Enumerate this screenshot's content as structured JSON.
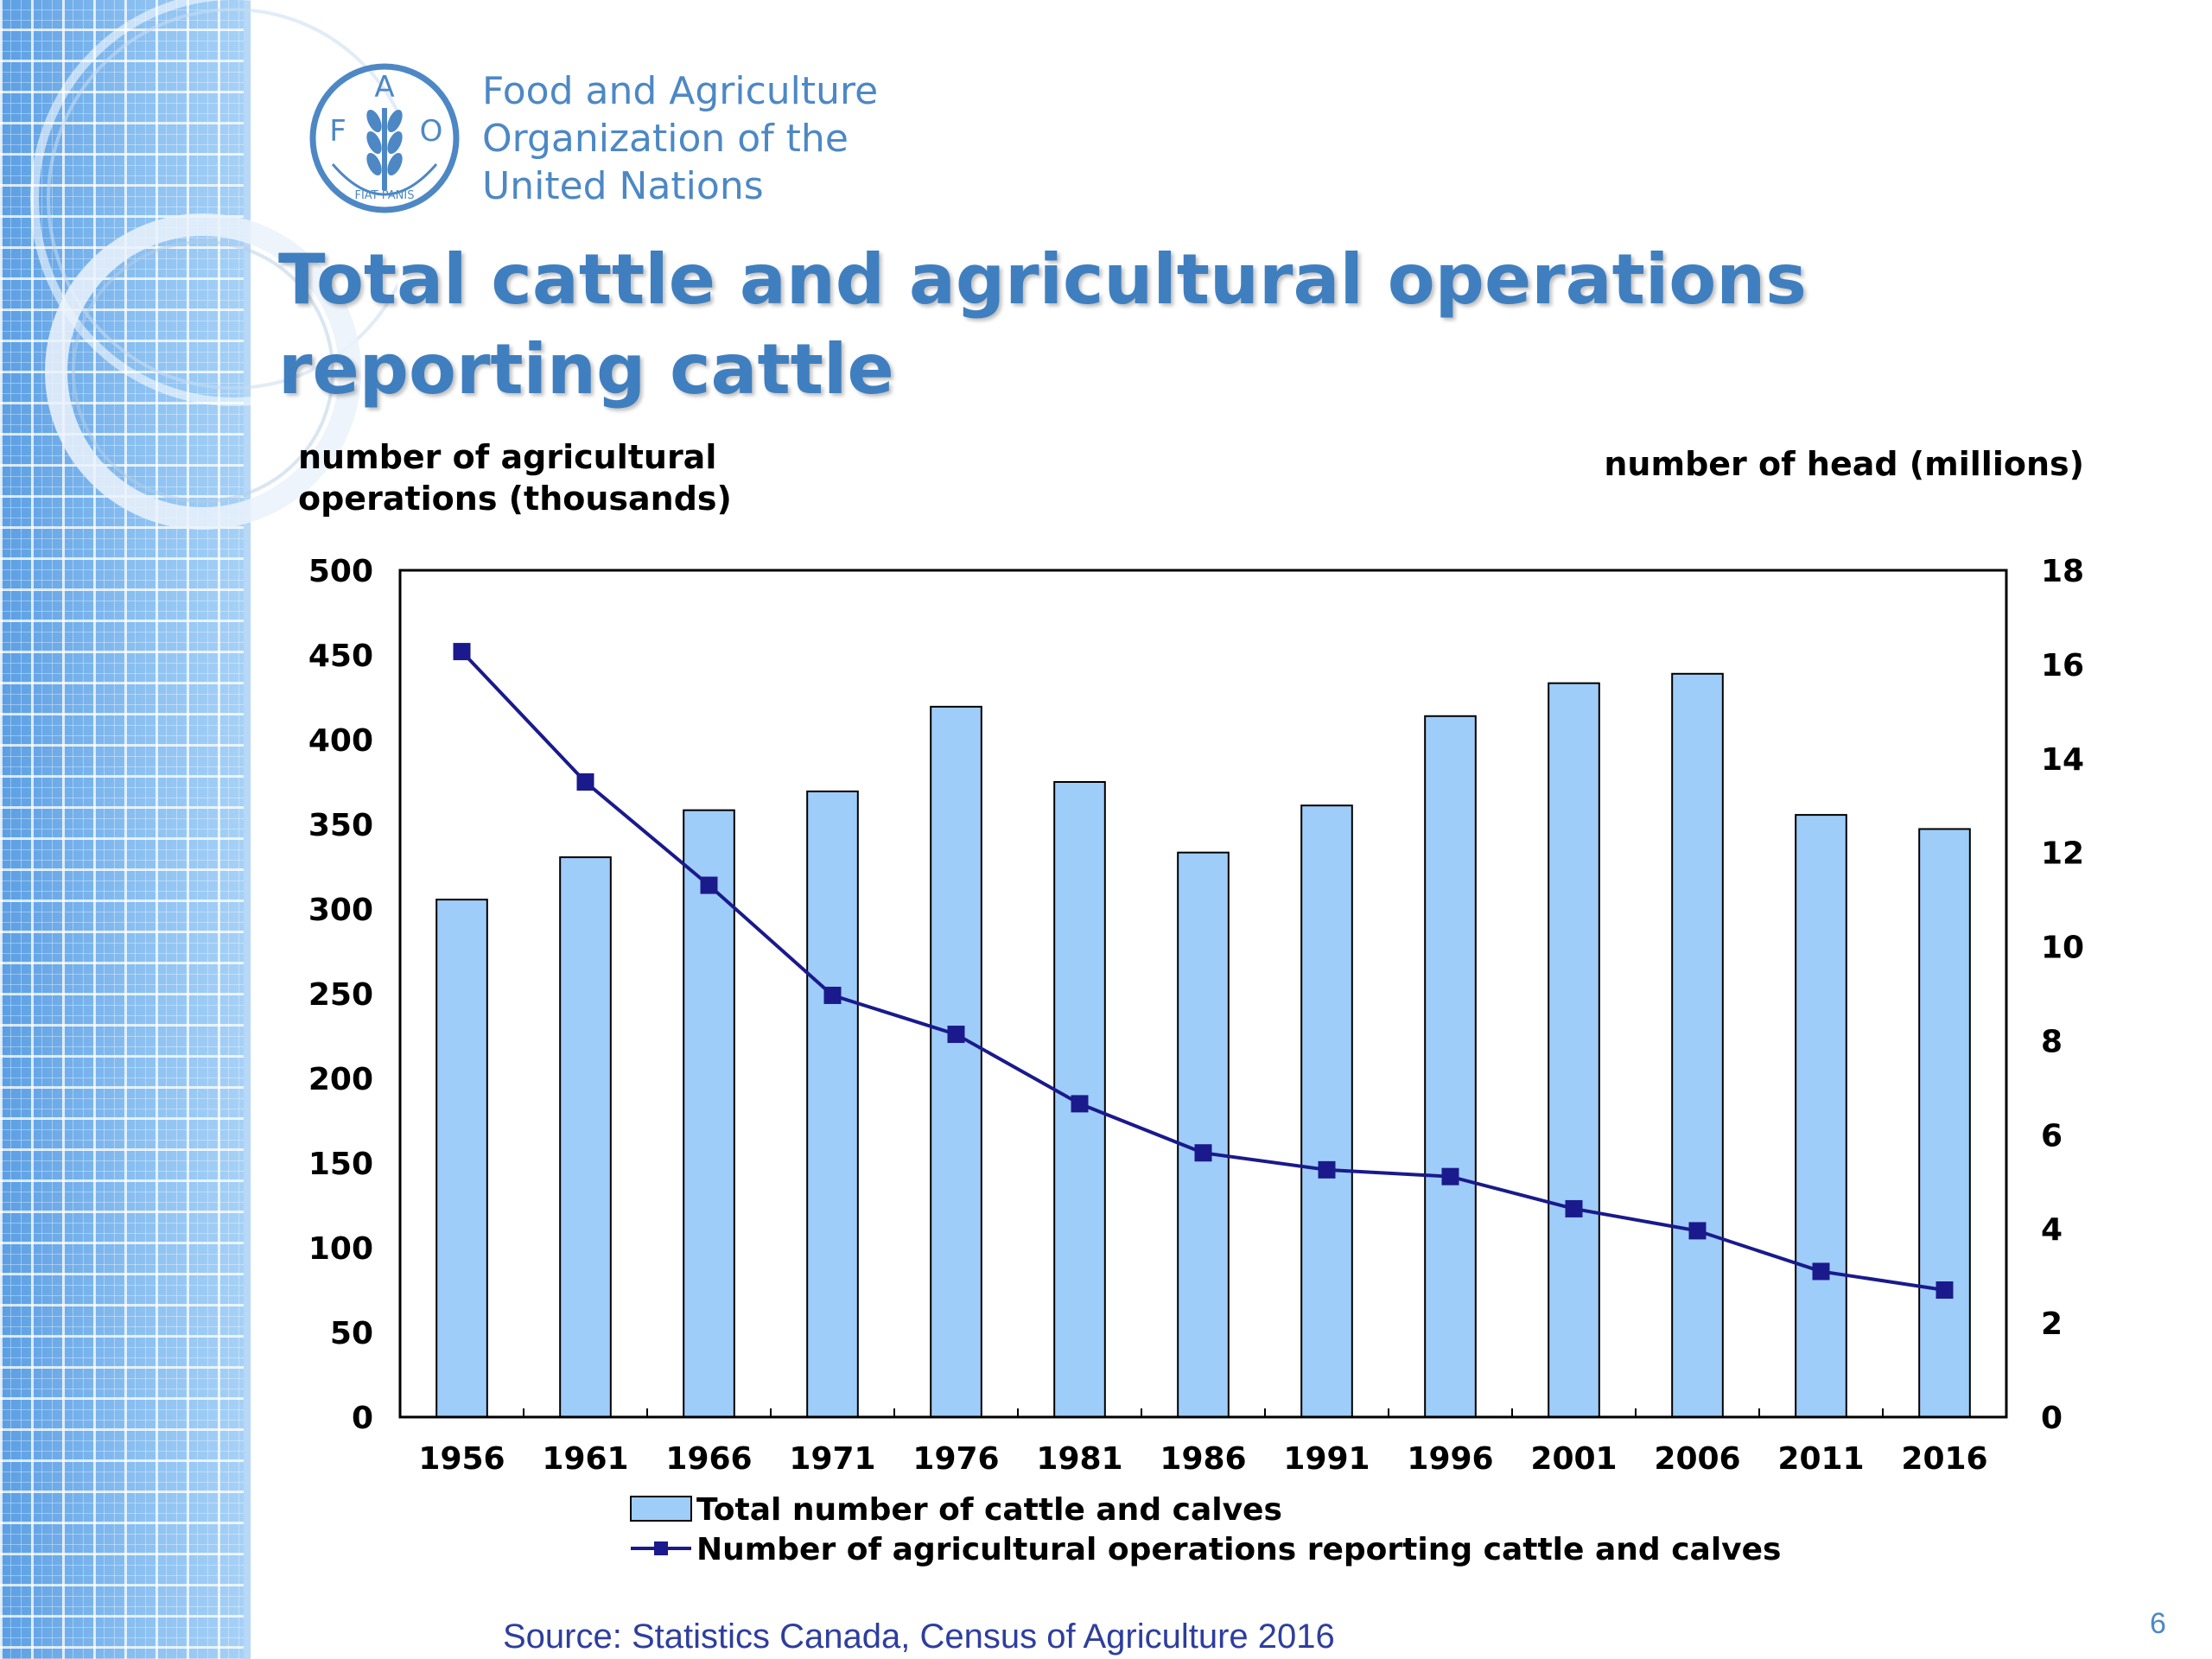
{
  "organization": {
    "line1": "Food and Agriculture",
    "line2": "Organization of the",
    "line3": "United Nations",
    "logo_letters": [
      "F",
      "A",
      "O"
    ],
    "logo_motto": "FIAT PANIS"
  },
  "slide_title": "Total cattle and agricultural operations reporting cattle",
  "source": "Source: Statistics Canada, Census of Agriculture 2016",
  "page_number": "6",
  "colors": {
    "title": "#3f7fbf",
    "bar_fill": "#9fcdfa",
    "line": "#1a1a8c",
    "source_text": "#2e3e9e"
  },
  "chart_data": {
    "type": "bar",
    "title": "",
    "categories": [
      "1956",
      "1961",
      "1966",
      "1971",
      "1976",
      "1981",
      "1986",
      "1991",
      "1996",
      "2001",
      "2006",
      "2011",
      "2016"
    ],
    "left_axis_label": "number of agricultural operations (thousands)",
    "left_axis_label_lines": [
      "number of agricultural",
      "operations (thousands)"
    ],
    "right_axis_label": "number of head (millions)",
    "left_ylim": [
      0,
      500
    ],
    "left_ticks": [
      0,
      50,
      100,
      150,
      200,
      250,
      300,
      350,
      400,
      450,
      500
    ],
    "right_ylim": [
      0,
      18
    ],
    "right_ticks": [
      0,
      2,
      4,
      6,
      8,
      10,
      12,
      14,
      16,
      18
    ],
    "grid": false,
    "legend_position": "bottom",
    "series": [
      {
        "name": "Total number of cattle and calves",
        "type": "bar",
        "axis": "right",
        "values": [
          11.0,
          11.9,
          12.9,
          13.3,
          15.1,
          13.5,
          12.0,
          13.0,
          14.9,
          15.6,
          15.8,
          12.8,
          12.5
        ]
      },
      {
        "name": "Number of agricultural operations reporting cattle and calves",
        "type": "line",
        "axis": "left",
        "values": [
          452,
          375,
          314,
          249,
          226,
          185,
          156,
          146,
          142,
          123,
          110,
          86,
          75
        ]
      }
    ]
  }
}
